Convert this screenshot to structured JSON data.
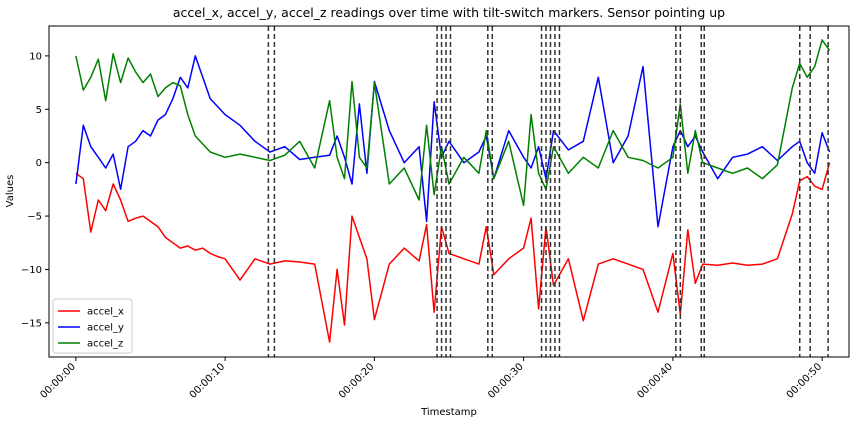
{
  "chart_data": {
    "type": "line",
    "title": "accel_x, accel_y, accel_z readings over time with tilt-switch markers. Sensor pointing up",
    "xlabel": "Timestamp",
    "ylabel": "Values",
    "xlim": [
      -1.8,
      51.8
    ],
    "ylim": [
      -18.2,
      12.8
    ],
    "x_ticks": [
      {
        "value": 0,
        "label": "00:00:00"
      },
      {
        "value": 10,
        "label": "00:00:10"
      },
      {
        "value": 20,
        "label": "00:00:20"
      },
      {
        "value": 30,
        "label": "00:00:30"
      },
      {
        "value": 40,
        "label": "00:00:40"
      },
      {
        "value": 50,
        "label": "00:00:50"
      }
    ],
    "y_ticks": [
      -15,
      -10,
      -5,
      0,
      5,
      10
    ],
    "legend_position": "lower-left",
    "grid": false,
    "series": [
      {
        "name": "accel_x",
        "color": "#ff0000",
        "x": [
          0,
          0.5,
          1,
          1.5,
          2,
          2.5,
          3,
          3.5,
          4,
          4.5,
          5,
          5.5,
          6,
          6.5,
          7,
          7.5,
          8,
          8.5,
          9,
          9.5,
          10,
          11,
          12,
          13,
          14,
          15,
          16,
          17,
          17.5,
          18,
          18.5,
          19,
          19.5,
          20,
          21,
          22,
          23,
          23.5,
          24,
          24.5,
          25,
          26,
          27,
          27.5,
          28,
          29,
          30,
          30.5,
          31,
          31.5,
          32,
          33,
          34,
          35,
          36,
          37,
          38,
          39,
          40,
          40.5,
          41,
          41.5,
          42,
          43,
          44,
          45,
          46,
          47,
          48,
          48.5,
          49,
          49.5,
          50,
          50.5
        ],
        "values": [
          -1.0,
          -1.5,
          -6.5,
          -3.5,
          -4.5,
          -2.0,
          -3.5,
          -5.5,
          -5.2,
          -5.0,
          -5.5,
          -6.0,
          -7.0,
          -7.5,
          -8.0,
          -7.8,
          -8.2,
          -8.0,
          -8.5,
          -8.8,
          -9.0,
          -11.0,
          -9.0,
          -9.5,
          -9.2,
          -9.3,
          -9.5,
          -16.8,
          -10.0,
          -15.2,
          -5.0,
          -7.0,
          -9.0,
          -14.7,
          -9.5,
          -8.0,
          -9.2,
          -5.8,
          -14.0,
          -6.0,
          -8.5,
          -9.0,
          -9.5,
          -6.0,
          -10.5,
          -9.0,
          -8.0,
          -5.2,
          -13.7,
          -6.0,
          -11.5,
          -9.0,
          -14.8,
          -9.5,
          -9.0,
          -9.5,
          -10.0,
          -14.0,
          -8.5,
          -14.2,
          -6.3,
          -11.3,
          -9.5,
          -9.6,
          -9.4,
          -9.6,
          -9.5,
          -9.0,
          -4.8,
          -1.7,
          -1.3,
          -2.2,
          -2.5,
          0.0
        ]
      },
      {
        "name": "accel_y",
        "color": "#0000ff",
        "x": [
          0,
          0.5,
          1,
          1.5,
          2,
          2.5,
          3,
          3.5,
          4,
          4.5,
          5,
          5.5,
          6,
          6.5,
          7,
          7.5,
          8,
          9,
          10,
          11,
          12,
          13,
          14,
          15,
          16,
          17,
          17.5,
          18,
          18.5,
          19,
          19.5,
          20,
          21,
          22,
          23,
          23.5,
          24,
          24.5,
          25,
          26,
          27,
          27.5,
          28,
          29,
          30,
          30.5,
          31,
          31.5,
          32,
          33,
          34,
          35,
          36,
          37,
          38,
          39,
          40,
          40.5,
          41,
          41.5,
          42,
          43,
          44,
          45,
          46,
          47,
          48,
          48.5,
          49,
          49.5,
          50,
          50.5
        ],
        "values": [
          -2.0,
          3.5,
          1.5,
          0.5,
          -0.5,
          0.8,
          -2.5,
          1.5,
          2.0,
          3.0,
          2.5,
          4.0,
          4.5,
          6.0,
          8.0,
          7.0,
          10.0,
          6.0,
          4.5,
          3.5,
          2.0,
          1.0,
          1.5,
          0.3,
          0.5,
          0.7,
          2.5,
          0.5,
          -2.0,
          5.5,
          -1.0,
          7.6,
          3.0,
          0.0,
          1.5,
          -5.5,
          5.7,
          0.5,
          2.0,
          0.0,
          1.0,
          2.5,
          -1.5,
          3.0,
          0.5,
          -0.5,
          1.5,
          -1.5,
          3.0,
          1.2,
          2.0,
          8.0,
          0.0,
          2.5,
          9.0,
          -6.0,
          1.5,
          3.0,
          1.5,
          2.5,
          1.0,
          -1.5,
          0.5,
          0.8,
          1.5,
          0.2,
          1.5,
          2.0,
          0.0,
          -1.0,
          2.8,
          1.0
        ]
      },
      {
        "name": "accel_z",
        "color": "#008000",
        "x": [
          0,
          0.5,
          1,
          1.5,
          2,
          2.5,
          3,
          3.5,
          4,
          4.5,
          5,
          5.5,
          6,
          6.5,
          7,
          7.5,
          8,
          9,
          10,
          11,
          12,
          13,
          14,
          15,
          16,
          17,
          17.5,
          18,
          18.5,
          19,
          19.5,
          20,
          21,
          22,
          23,
          23.5,
          24,
          24.5,
          25,
          26,
          27,
          27.5,
          28,
          29,
          30,
          30.5,
          31,
          31.5,
          32,
          33,
          34,
          35,
          36,
          37,
          38,
          39,
          40,
          40.5,
          41,
          41.5,
          42,
          43,
          44,
          45,
          46,
          47,
          48,
          48.5,
          49,
          49.5,
          50,
          50.5
        ],
        "values": [
          10.0,
          6.8,
          8.0,
          9.7,
          5.8,
          10.2,
          7.5,
          9.8,
          8.5,
          7.5,
          8.3,
          6.2,
          7.0,
          7.5,
          7.2,
          4.5,
          2.5,
          1.0,
          0.5,
          0.8,
          0.5,
          0.2,
          0.7,
          2.0,
          -0.5,
          5.8,
          0.5,
          -1.5,
          7.6,
          0.5,
          -0.5,
          7.5,
          -2.0,
          -0.5,
          -3.5,
          3.5,
          -3.0,
          1.5,
          -2.0,
          0.5,
          -1.0,
          3.0,
          -1.5,
          2.0,
          -4.0,
          4.5,
          -1.0,
          -2.5,
          1.5,
          -1.0,
          0.5,
          -0.5,
          3.0,
          0.5,
          0.2,
          -0.5,
          0.5,
          5.5,
          -1.0,
          3.0,
          0.0,
          -0.5,
          -1.0,
          -0.5,
          -1.5,
          -0.2,
          7.0,
          9.3,
          8.0,
          9.0,
          11.5,
          10.5
        ]
      }
    ],
    "tilt_switch_markers": [
      12.9,
      13.3,
      24.2,
      24.5,
      24.8,
      25.1,
      27.6,
      27.9,
      31.2,
      31.5,
      31.8,
      32.1,
      32.4,
      40.2,
      40.5,
      41.9,
      42.1,
      48.5,
      49.2,
      50.4
    ]
  }
}
